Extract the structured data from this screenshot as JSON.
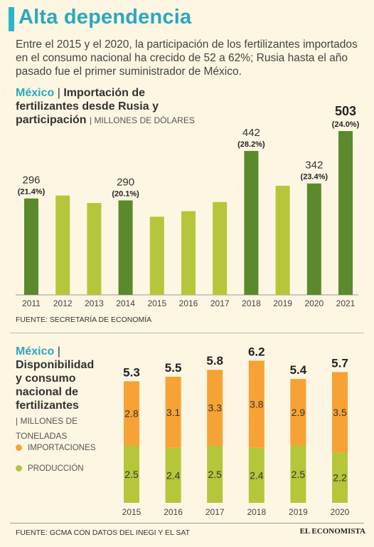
{
  "header": {
    "title": "Alta dependencia",
    "intro": "Entre el 2015 y el 2020, la participación de los fertilizantes importados en el consumo nacional ha crecido de 52 a 62%; Rusia hasta el año pasado fue el primer suministrador de México."
  },
  "chart1": {
    "country": "México",
    "sep": "|",
    "title_line1": "Importación de",
    "title_line2": "fertilizantes desde Rusia y",
    "title_line3": "participación",
    "unit": "| MILLONES DE DÓLARES",
    "source": "FUENTE: SECRETARÍA DE ECONOMÍA"
  },
  "chart2": {
    "country": "México",
    "sep": "|",
    "title_line1": "Disponibilidad",
    "title_line2": "y consumo",
    "title_line3": "nacional de",
    "title_line4": "fertilizantes",
    "unit_line1": "| MILLONES DE",
    "unit_line2": "TONELADAS",
    "legend_imports": "IMPORTACIONES",
    "legend_production": "PRODUCCIÓN",
    "source": "FUENTE: GCMA CON DATOS DEL INEGI Y EL SAT"
  },
  "branding": {
    "logo": "EL ECONOMISTA"
  },
  "colors": {
    "accent": "#2aa8bf",
    "dark_green": "#5a8a2c",
    "light_green": "#b5c63a",
    "orange": "#f7a235"
  },
  "chart_data": [
    {
      "type": "bar",
      "title": "Importación de fertilizantes desde Rusia y participación",
      "ylabel": "MILLONES DE DÓLARES",
      "categories": [
        "2011",
        "2012",
        "2013",
        "2014",
        "2015",
        "2016",
        "2017",
        "2018",
        "2019",
        "2020",
        "2021"
      ],
      "values": [
        296,
        305,
        282,
        290,
        240,
        257,
        285,
        442,
        335,
        342,
        503
      ],
      "labels": [
        "296",
        null,
        null,
        "290",
        null,
        null,
        null,
        "442",
        null,
        "342",
        "503"
      ],
      "percent_labels": [
        "(21.4%)",
        null,
        null,
        "(20.1%)",
        null,
        null,
        null,
        "(28.2%)",
        null,
        "(23.4%)",
        "(24.0%)"
      ],
      "highlighted": [
        true,
        false,
        false,
        true,
        false,
        false,
        false,
        true,
        false,
        true,
        true
      ],
      "ylim": [
        0,
        520
      ],
      "grid": false
    },
    {
      "type": "bar",
      "stacked": true,
      "title": "Disponibilidad y consumo nacional de fertilizantes",
      "ylabel": "MILLONES DE TONELADAS",
      "categories": [
        "2015",
        "2016",
        "2017",
        "2018",
        "2019",
        "2020"
      ],
      "series": [
        {
          "name": "PRODUCCIÓN",
          "values": [
            2.5,
            2.4,
            2.5,
            2.4,
            2.5,
            2.2
          ],
          "labels": [
            "2.5",
            "2.4",
            "2.5",
            "2.4",
            "2.5",
            "2.2"
          ]
        },
        {
          "name": "IMPORTACIONES",
          "values": [
            2.8,
            3.1,
            3.3,
            3.8,
            2.9,
            3.5
          ],
          "labels": [
            "2.8",
            "3.1",
            "3.3",
            "3.8",
            "2.9",
            "3.5"
          ]
        }
      ],
      "totals": [
        "5.3",
        "5.5",
        "5.8",
        "6.2",
        "5.4",
        "5.7"
      ],
      "ylim": [
        0,
        6.5
      ],
      "legend": "left",
      "grid": false
    }
  ]
}
